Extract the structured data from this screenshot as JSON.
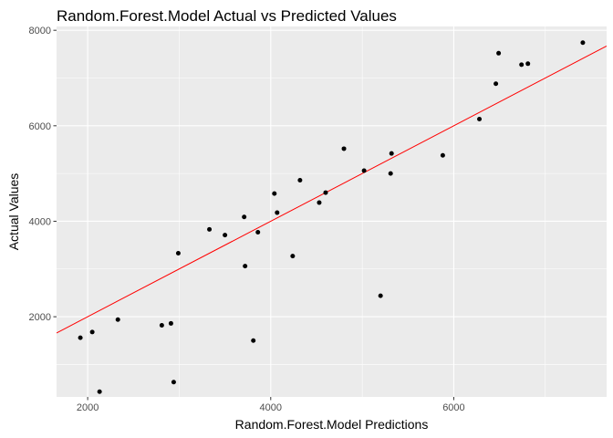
{
  "chart_data": {
    "type": "scatter",
    "title": "Random.Forest.Model Actual vs Predicted Values",
    "xlabel": "Random.Forest.Model Predictions",
    "ylabel": "Actual Values",
    "xlim": [
      1660,
      7670
    ],
    "ylim": [
      320,
      8080
    ],
    "x_ticks": [
      2000,
      4000,
      6000
    ],
    "y_ticks": [
      2000,
      4000,
      6000,
      8000
    ],
    "x_tick_labels": [
      "2000",
      "4000",
      "6000"
    ],
    "y_tick_labels": [
      "2000",
      "4000",
      "6000",
      "8000"
    ],
    "grid": true,
    "points": [
      {
        "x": 1920,
        "y": 1560
      },
      {
        "x": 2050,
        "y": 1680
      },
      {
        "x": 2130,
        "y": 430
      },
      {
        "x": 2330,
        "y": 1940
      },
      {
        "x": 2810,
        "y": 1820
      },
      {
        "x": 2910,
        "y": 1860
      },
      {
        "x": 2940,
        "y": 630
      },
      {
        "x": 2990,
        "y": 3330
      },
      {
        "x": 3330,
        "y": 3830
      },
      {
        "x": 3500,
        "y": 3710
      },
      {
        "x": 3710,
        "y": 4090
      },
      {
        "x": 3720,
        "y": 3060
      },
      {
        "x": 3810,
        "y": 1500
      },
      {
        "x": 3860,
        "y": 3770
      },
      {
        "x": 4040,
        "y": 4580
      },
      {
        "x": 4070,
        "y": 4180
      },
      {
        "x": 4240,
        "y": 3270
      },
      {
        "x": 4320,
        "y": 4860
      },
      {
        "x": 4530,
        "y": 4390
      },
      {
        "x": 4600,
        "y": 4600
      },
      {
        "x": 4800,
        "y": 5520
      },
      {
        "x": 5020,
        "y": 5060
      },
      {
        "x": 5200,
        "y": 2440
      },
      {
        "x": 5310,
        "y": 5000
      },
      {
        "x": 5320,
        "y": 5420
      },
      {
        "x": 5880,
        "y": 5380
      },
      {
        "x": 6280,
        "y": 6140
      },
      {
        "x": 6460,
        "y": 6880
      },
      {
        "x": 6490,
        "y": 7520
      },
      {
        "x": 6740,
        "y": 7280
      },
      {
        "x": 6810,
        "y": 7300
      },
      {
        "x": 7410,
        "y": 7740
      }
    ],
    "fit_line": {
      "x": [
        1660,
        7670
      ],
      "y": [
        1660,
        7670
      ],
      "color": "#ff0000"
    },
    "colors": {
      "panel_background": "#ebebeb",
      "grid_major": "#ffffff",
      "point": "#000000"
    }
  }
}
